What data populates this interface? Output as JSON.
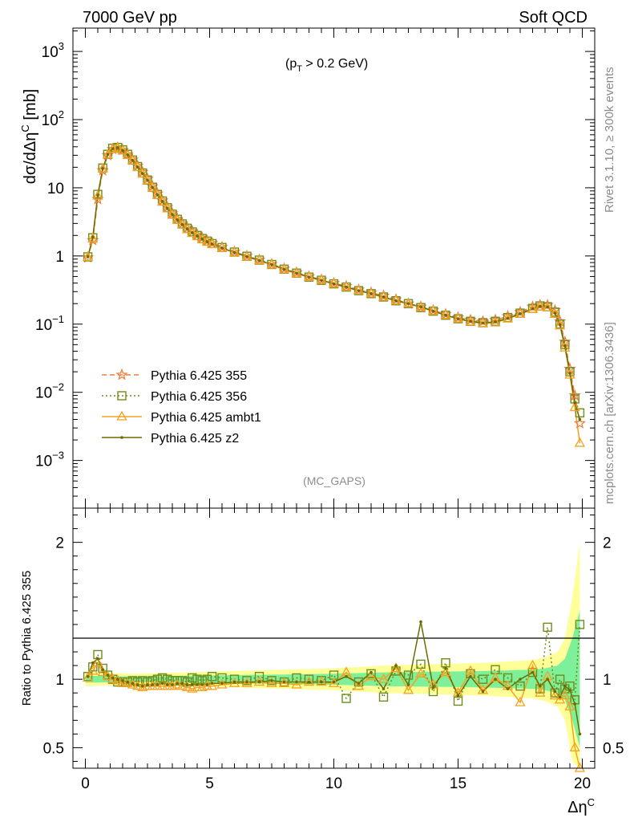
{
  "header": {
    "left": "7000 GeV pp",
    "right": "Soft QCD"
  },
  "side_text": {
    "top": "Rivet 3.1.10, ≥ 300k events",
    "bottom": "mcplots.cern.ch [arXiv:1306.3436]"
  },
  "chart_data": [
    {
      "type": "line",
      "panel": "main",
      "annotation": "(p_T > 0.2 GeV)",
      "analysis_label": "(MC_GAPS)",
      "ylabel": "dσ/dΔη^C [mb]",
      "xlim": [
        -0.5,
        20.5
      ],
      "ylim": [
        0.0002,
        2200
      ],
      "yscale": "log",
      "yticks": [
        {
          "value": 0.001,
          "base": "10",
          "exp": "−3"
        },
        {
          "value": 0.01,
          "base": "10",
          "exp": "−2"
        },
        {
          "value": 0.1,
          "base": "10",
          "exp": "−1"
        },
        {
          "value": 1,
          "base": "1",
          "exp": ""
        },
        {
          "value": 10,
          "base": "10",
          "exp": ""
        },
        {
          "value": 100,
          "base": "10",
          "exp": "2"
        },
        {
          "value": 1000,
          "base": "10",
          "exp": "3"
        }
      ],
      "legend_position": "lower-left",
      "series": [
        {
          "name": "Pythia 6.425 355",
          "color": "#ee7d3e",
          "marker": "star",
          "dash": "6,4",
          "x": [
            0.1,
            0.3,
            0.5,
            0.7,
            0.9,
            1.1,
            1.3,
            1.5,
            1.7,
            1.9,
            2.1,
            2.3,
            2.5,
            2.7,
            2.9,
            3.1,
            3.3,
            3.5,
            3.7,
            3.9,
            4.1,
            4.3,
            4.5,
            4.7,
            4.9,
            5.1,
            5.5,
            6.0,
            6.5,
            7.0,
            7.5,
            8.0,
            8.5,
            9.0,
            9.5,
            10.0,
            10.5,
            11.0,
            11.5,
            12.0,
            12.5,
            13.0,
            13.5,
            14.0,
            14.5,
            15.0,
            15.5,
            16.0,
            16.5,
            17.0,
            17.5,
            18.0,
            18.3,
            18.6,
            18.9,
            19.1,
            19.3,
            19.5,
            19.7,
            19.9
          ],
          "y": [
            0.95,
            1.7,
            6.8,
            18,
            30,
            37,
            39,
            36,
            31,
            26,
            21,
            17,
            13.5,
            10.5,
            8.2,
            6.5,
            5.2,
            4.2,
            3.5,
            3.0,
            2.6,
            2.3,
            2.05,
            1.85,
            1.68,
            1.55,
            1.35,
            1.15,
            1.0,
            0.88,
            0.76,
            0.65,
            0.57,
            0.5,
            0.45,
            0.4,
            0.36,
            0.32,
            0.29,
            0.26,
            0.23,
            0.2,
            0.18,
            0.16,
            0.14,
            0.125,
            0.115,
            0.11,
            0.115,
            0.13,
            0.15,
            0.18,
            0.19,
            0.19,
            0.16,
            0.11,
            0.055,
            0.022,
            0.009,
            0.0035
          ]
        },
        {
          "name": "Pythia 6.425 356",
          "color": "#6e8c1a",
          "marker": "open-square",
          "dash": "2,3",
          "x": [
            0.1,
            0.3,
            0.5,
            0.7,
            0.9,
            1.1,
            1.3,
            1.5,
            1.7,
            1.9,
            2.1,
            2.3,
            2.5,
            2.7,
            2.9,
            3.1,
            3.3,
            3.5,
            3.7,
            3.9,
            4.1,
            4.3,
            4.5,
            4.7,
            4.9,
            5.1,
            5.5,
            6.0,
            6.5,
            7.0,
            7.5,
            8.0,
            8.5,
            9.0,
            9.5,
            10.0,
            10.5,
            11.0,
            11.5,
            12.0,
            12.5,
            13.0,
            13.5,
            14.0,
            14.5,
            15.0,
            15.5,
            16.0,
            16.5,
            17.0,
            17.5,
            18.0,
            18.3,
            18.6,
            18.9,
            19.1,
            19.3,
            19.5,
            19.7,
            19.9
          ],
          "y": [
            0.97,
            1.85,
            8.0,
            19.5,
            31,
            38,
            39,
            36,
            31,
            25.5,
            20.5,
            16.5,
            13,
            10.2,
            8.0,
            6.4,
            5.1,
            4.1,
            3.45,
            2.95,
            2.55,
            2.25,
            2.0,
            1.8,
            1.65,
            1.52,
            1.33,
            1.14,
            0.99,
            0.87,
            0.75,
            0.64,
            0.56,
            0.49,
            0.44,
            0.39,
            0.35,
            0.31,
            0.28,
            0.25,
            0.22,
            0.2,
            0.175,
            0.155,
            0.135,
            0.12,
            0.11,
            0.105,
            0.11,
            0.125,
            0.145,
            0.17,
            0.185,
            0.18,
            0.15,
            0.1,
            0.05,
            0.02,
            0.008,
            0.005
          ]
        },
        {
          "name": "Pythia 6.425 ambt1",
          "color": "#f5a21f",
          "marker": "open-triangle",
          "dash": "",
          "x": [
            0.1,
            0.3,
            0.5,
            0.7,
            0.9,
            1.1,
            1.3,
            1.5,
            1.7,
            1.9,
            2.1,
            2.3,
            2.5,
            2.7,
            2.9,
            3.1,
            3.3,
            3.5,
            3.7,
            3.9,
            4.1,
            4.3,
            4.5,
            4.7,
            4.9,
            5.1,
            5.5,
            6.0,
            6.5,
            7.0,
            7.5,
            8.0,
            8.5,
            9.0,
            9.5,
            10.0,
            10.5,
            11.0,
            11.5,
            12.0,
            12.5,
            13.0,
            13.5,
            14.0,
            14.5,
            15.0,
            15.5,
            16.0,
            16.5,
            17.0,
            17.5,
            18.0,
            18.3,
            18.6,
            18.9,
            19.1,
            19.3,
            19.5,
            19.7,
            19.9
          ],
          "y": [
            0.96,
            1.8,
            7.6,
            19,
            30.5,
            37,
            38.5,
            35,
            30,
            25,
            20,
            16,
            12.8,
            10,
            7.8,
            6.2,
            4.95,
            4.0,
            3.35,
            2.85,
            2.45,
            2.15,
            1.93,
            1.74,
            1.6,
            1.48,
            1.3,
            1.12,
            0.97,
            0.86,
            0.74,
            0.63,
            0.55,
            0.49,
            0.44,
            0.39,
            0.35,
            0.31,
            0.28,
            0.25,
            0.22,
            0.2,
            0.175,
            0.155,
            0.135,
            0.12,
            0.108,
            0.102,
            0.105,
            0.12,
            0.14,
            0.165,
            0.18,
            0.175,
            0.14,
            0.095,
            0.045,
            0.018,
            0.006,
            0.0018
          ]
        },
        {
          "name": "Pythia 6.425 z2",
          "color": "#6b6b00",
          "marker": "dot",
          "dash": "",
          "x": [
            0.1,
            0.3,
            0.5,
            0.7,
            0.9,
            1.1,
            1.3,
            1.5,
            1.7,
            1.9,
            2.1,
            2.3,
            2.5,
            2.7,
            2.9,
            3.1,
            3.3,
            3.5,
            3.7,
            3.9,
            4.1,
            4.3,
            4.5,
            4.7,
            4.9,
            5.1,
            5.5,
            6.0,
            6.5,
            7.0,
            7.5,
            8.0,
            8.5,
            9.0,
            9.5,
            10.0,
            10.5,
            11.0,
            11.5,
            12.0,
            12.5,
            13.0,
            13.5,
            14.0,
            14.5,
            15.0,
            15.5,
            16.0,
            16.5,
            17.0,
            17.5,
            18.0,
            18.3,
            18.6,
            18.9,
            19.1,
            19.3,
            19.5,
            19.7,
            19.9
          ],
          "y": [
            0.97,
            1.9,
            7.8,
            19.2,
            30.8,
            37.5,
            38.8,
            35.5,
            30.5,
            25.2,
            20.2,
            16.2,
            12.9,
            10.1,
            7.9,
            6.3,
            5.0,
            4.05,
            3.4,
            2.9,
            2.5,
            2.2,
            1.96,
            1.77,
            1.62,
            1.5,
            1.31,
            1.13,
            0.98,
            0.86,
            0.75,
            0.64,
            0.56,
            0.49,
            0.44,
            0.39,
            0.35,
            0.31,
            0.28,
            0.25,
            0.22,
            0.2,
            0.18,
            0.155,
            0.135,
            0.12,
            0.11,
            0.104,
            0.108,
            0.122,
            0.142,
            0.168,
            0.182,
            0.178,
            0.145,
            0.098,
            0.048,
            0.019,
            0.007,
            0.004
          ]
        }
      ]
    },
    {
      "type": "line",
      "panel": "ratio",
      "ylabel": "Ratio to Pythia 6.425 355",
      "xlabel": "Δη^C",
      "xlim": [
        -0.5,
        20.5
      ],
      "ylim": [
        0.35,
        2.25
      ],
      "yscale": "linear",
      "yticks": [
        "0.5",
        "1",
        "2"
      ],
      "xticks": [
        "0",
        "5",
        "10",
        "15",
        "20"
      ],
      "bands": [
        {
          "name": "reference uncertainty (2σ)",
          "color": "#ffff99",
          "x": [
            0,
            2,
            4,
            6,
            8,
            10,
            12,
            14,
            16,
            17,
            18,
            18.5,
            19,
            19.3,
            19.6,
            19.9
          ],
          "half_width": [
            0.05,
            0.04,
            0.05,
            0.06,
            0.07,
            0.08,
            0.1,
            0.11,
            0.12,
            0.13,
            0.14,
            0.16,
            0.2,
            0.3,
            0.6,
            1.0
          ]
        },
        {
          "name": "reference uncertainty (1σ)",
          "color": "#7ff09a",
          "x": [
            0,
            2,
            4,
            6,
            8,
            10,
            12,
            14,
            16,
            17,
            18,
            18.5,
            19,
            19.3,
            19.6,
            19.9
          ],
          "half_width": [
            0.025,
            0.02,
            0.025,
            0.03,
            0.035,
            0.04,
            0.05,
            0.055,
            0.06,
            0.065,
            0.07,
            0.08,
            0.1,
            0.15,
            0.3,
            0.5
          ]
        }
      ],
      "series": [
        {
          "name": "Pythia 6.425 356",
          "color": "#6e8c1a",
          "marker": "open-square",
          "dash": "2,3",
          "x": [
            0.1,
            0.3,
            0.5,
            0.7,
            0.9,
            1.1,
            1.3,
            1.5,
            1.7,
            1.9,
            2.1,
            2.3,
            2.5,
            2.7,
            2.9,
            3.1,
            3.3,
            3.5,
            3.7,
            3.9,
            4.1,
            4.3,
            4.5,
            4.7,
            4.9,
            5.1,
            5.5,
            6.0,
            6.5,
            7.0,
            7.5,
            8.0,
            8.5,
            9.0,
            9.5,
            10.0,
            10.5,
            11.0,
            11.5,
            12.0,
            12.5,
            13.0,
            13.5,
            14.0,
            14.5,
            15.0,
            15.5,
            16.0,
            16.5,
            17.0,
            17.5,
            18.0,
            18.3,
            18.6,
            18.9,
            19.1,
            19.3,
            19.5,
            19.7,
            19.9
          ],
          "y": [
            1.02,
            1.09,
            1.18,
            1.08,
            1.03,
            1.0,
            0.98,
            0.98,
            0.98,
            0.99,
            0.98,
            0.99,
            0.98,
            0.99,
            1.0,
            1.01,
            1.0,
            0.99,
            0.99,
            0.99,
            0.98,
            1.01,
            1.0,
            0.99,
            1.0,
            1.02,
            1.01,
            1.0,
            0.99,
            1.02,
            0.99,
            0.98,
            1.01,
            1.0,
            0.99,
            1.03,
            0.86,
            0.98,
            1.04,
            0.87,
            1.06,
            1.03,
            1.11,
            0.91,
            1.12,
            0.84,
            1.04,
            1.0,
            1.07,
            1.01,
            0.95,
            1.05,
            0.93,
            1.38,
            0.9,
            1.0,
            0.93,
            0.95,
            0.85,
            1.4
          ]
        },
        {
          "name": "Pythia 6.425 ambt1",
          "color": "#f5a21f",
          "marker": "open-triangle",
          "dash": "",
          "x": [
            0.1,
            0.3,
            0.5,
            0.7,
            0.9,
            1.1,
            1.3,
            1.5,
            1.7,
            1.9,
            2.1,
            2.3,
            2.5,
            2.7,
            2.9,
            3.1,
            3.3,
            3.5,
            3.7,
            3.9,
            4.1,
            4.3,
            4.5,
            4.7,
            4.9,
            5.1,
            5.5,
            6.0,
            6.5,
            7.0,
            7.5,
            8.0,
            8.5,
            9.0,
            9.5,
            10.0,
            10.5,
            11.0,
            11.5,
            12.0,
            12.5,
            13.0,
            13.5,
            14.0,
            14.5,
            15.0,
            15.5,
            16.0,
            16.5,
            17.0,
            17.5,
            18.0,
            18.3,
            18.6,
            18.9,
            19.1,
            19.3,
            19.5,
            19.7,
            19.9
          ],
          "y": [
            1.01,
            1.06,
            1.12,
            1.05,
            1.02,
            1.0,
            0.99,
            0.97,
            0.97,
            0.96,
            0.95,
            0.94,
            0.95,
            0.95,
            0.95,
            0.95,
            0.95,
            0.95,
            0.96,
            0.95,
            0.94,
            0.93,
            0.94,
            0.94,
            0.95,
            0.95,
            0.96,
            0.97,
            0.97,
            0.98,
            0.97,
            0.97,
            0.96,
            0.98,
            0.98,
            0.97,
            1.05,
            0.95,
            1.02,
            1.0,
            1.08,
            0.92,
            1.04,
            0.96,
            1.05,
            0.9,
            1.06,
            0.92,
            1.01,
            0.95,
            0.83,
            1.1,
            0.9,
            1.02,
            0.88,
            0.85,
            0.88,
            0.8,
            0.5,
            0.35
          ]
        },
        {
          "name": "Pythia 6.425 z2",
          "color": "#6b6b00",
          "marker": "dot",
          "dash": "",
          "x": [
            0.1,
            0.3,
            0.5,
            0.7,
            0.9,
            1.1,
            1.3,
            1.5,
            1.7,
            1.9,
            2.1,
            2.3,
            2.5,
            2.7,
            2.9,
            3.1,
            3.3,
            3.5,
            3.7,
            3.9,
            4.1,
            4.3,
            4.5,
            4.7,
            4.9,
            5.1,
            5.5,
            6.0,
            6.5,
            7.0,
            7.5,
            8.0,
            8.5,
            9.0,
            9.5,
            10.0,
            10.5,
            11.0,
            11.5,
            12.0,
            12.5,
            13.0,
            13.5,
            14.0,
            14.5,
            15.0,
            15.5,
            16.0,
            16.5,
            17.0,
            17.5,
            18.0,
            18.3,
            18.6,
            18.9,
            19.1,
            19.3,
            19.5,
            19.7,
            19.9
          ],
          "y": [
            1.02,
            1.12,
            1.15,
            1.07,
            1.03,
            1.01,
            1.0,
            0.99,
            0.98,
            0.97,
            0.96,
            0.95,
            0.96,
            0.96,
            0.96,
            0.97,
            0.96,
            0.96,
            0.97,
            0.97,
            0.96,
            0.96,
            0.96,
            0.96,
            0.96,
            0.97,
            0.97,
            0.98,
            0.98,
            0.98,
            0.99,
            0.98,
            0.98,
            0.98,
            0.98,
            0.98,
            1.02,
            0.97,
            1.05,
            0.93,
            1.1,
            0.96,
            1.42,
            0.94,
            1.08,
            0.88,
            1.02,
            0.91,
            1.0,
            0.93,
            1.0,
            1.05,
            0.95,
            1.0,
            0.91,
            0.87,
            0.95,
            0.92,
            0.82,
            0.6
          ]
        }
      ]
    }
  ]
}
